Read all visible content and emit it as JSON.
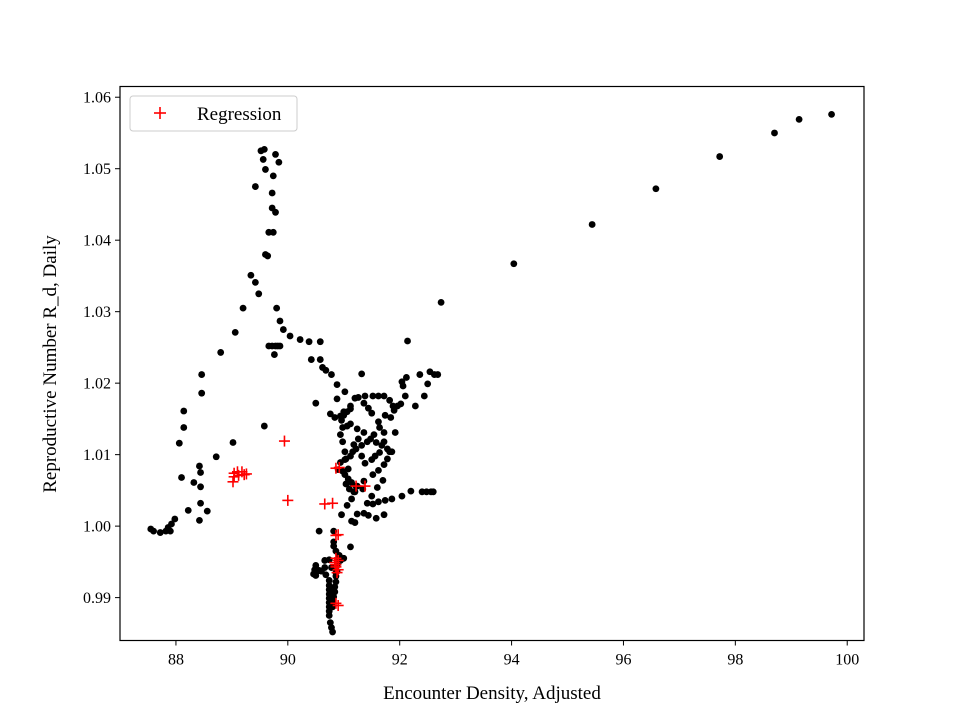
{
  "chart_data": {
    "type": "scatter",
    "title": "",
    "xlabel": "Encounter Density, Adjusted",
    "ylabel": "Reproductive Number R_d, Daily",
    "xlim": [
      87.0,
      100.3
    ],
    "ylim": [
      0.984,
      1.0615
    ],
    "xticks": [
      88,
      90,
      92,
      94,
      96,
      98,
      100
    ],
    "yticks": [
      0.99,
      1.0,
      1.01,
      1.02,
      1.03,
      1.04,
      1.05,
      1.06
    ],
    "xtick_labels": [
      "88",
      "90",
      "92",
      "94",
      "96",
      "98",
      "100"
    ],
    "ytick_labels": [
      "0.99",
      "1.00",
      "1.01",
      "1.02",
      "1.03",
      "1.04",
      "1.05",
      "1.06"
    ],
    "grid": false,
    "legend_placement": "top-left",
    "colors": {
      "observed": "#000000",
      "regression": "#ff0000"
    },
    "series": [
      {
        "marker": "dot",
        "color": "#000000",
        "points": [
          [
            87.55,
            0.9996
          ],
          [
            87.6,
            0.9993
          ],
          [
            87.72,
            0.9991
          ],
          [
            87.82,
            0.9993
          ],
          [
            87.86,
            0.9998
          ],
          [
            87.92,
            1.0003
          ],
          [
            87.9,
            0.9993
          ],
          [
            87.98,
            1.001
          ],
          [
            88.06,
            1.0116
          ],
          [
            88.1,
            1.0068
          ],
          [
            88.14,
            1.0138
          ],
          [
            88.14,
            1.0161
          ],
          [
            88.22,
            1.0022
          ],
          [
            88.32,
            1.0061
          ],
          [
            88.42,
            1.0084
          ],
          [
            88.44,
            1.0075
          ],
          [
            88.44,
            1.0055
          ],
          [
            88.44,
            1.0032
          ],
          [
            88.42,
            1.0008
          ],
          [
            88.56,
            1.0021
          ],
          [
            88.46,
            1.0186
          ],
          [
            88.46,
            1.0212
          ],
          [
            88.72,
            1.0097
          ],
          [
            88.8,
            1.0243
          ],
          [
            89.06,
            1.0271
          ],
          [
            89.02,
            1.0117
          ],
          [
            89.2,
            1.0305
          ],
          [
            89.34,
            1.0351
          ],
          [
            89.42,
            1.0341
          ],
          [
            89.48,
            1.0325
          ],
          [
            89.42,
            1.0475
          ],
          [
            89.52,
            1.0525
          ],
          [
            89.58,
            1.0527
          ],
          [
            89.56,
            1.0513
          ],
          [
            89.6,
            1.0499
          ],
          [
            89.6,
            1.038
          ],
          [
            89.64,
            1.0378
          ],
          [
            89.66,
            1.0411
          ],
          [
            89.74,
            1.0411
          ],
          [
            89.74,
            1.049
          ],
          [
            89.72,
            1.0466
          ],
          [
            89.72,
            1.0445
          ],
          [
            89.78,
            1.0439
          ],
          [
            89.78,
            1.052
          ],
          [
            89.84,
            1.0509
          ],
          [
            89.58,
            1.014
          ],
          [
            89.8,
            1.0305
          ],
          [
            89.86,
            1.0287
          ],
          [
            89.92,
            1.0275
          ],
          [
            89.66,
            1.0252
          ],
          [
            89.72,
            1.0252
          ],
          [
            89.78,
            1.0252
          ],
          [
            89.82,
            1.0252
          ],
          [
            89.86,
            1.0252
          ],
          [
            89.76,
            1.024
          ],
          [
            90.04,
            1.0266
          ],
          [
            90.22,
            1.0261
          ],
          [
            90.38,
            1.0258
          ],
          [
            90.58,
            1.0258
          ],
          [
            90.42,
            1.0233
          ],
          [
            90.58,
            1.0233
          ],
          [
            90.62,
            1.0222
          ],
          [
            90.68,
            1.0218
          ],
          [
            90.78,
            1.0212
          ],
          [
            90.88,
            1.0198
          ],
          [
            91.02,
            1.0188
          ],
          [
            90.88,
            1.0178
          ],
          [
            91.12,
            1.0164
          ],
          [
            90.94,
            1.0154
          ],
          [
            91.06,
            1.014
          ],
          [
            90.84,
            1.0152
          ],
          [
            90.76,
            1.0157
          ],
          [
            91.0,
            1.016
          ],
          [
            91.12,
            1.0143
          ],
          [
            91.24,
            1.0136
          ],
          [
            91.36,
            1.0131
          ],
          [
            91.48,
            1.0122
          ],
          [
            91.58,
            1.0117
          ],
          [
            91.68,
            1.0113
          ],
          [
            91.78,
            1.0108
          ],
          [
            91.86,
            1.0104
          ],
          [
            91.92,
            1.0131
          ],
          [
            91.84,
            1.0152
          ],
          [
            91.9,
            1.0162
          ],
          [
            91.96,
            1.0168
          ],
          [
            92.02,
            1.0171
          ],
          [
            92.1,
            1.0182
          ],
          [
            92.06,
            1.0196
          ],
          [
            92.04,
            1.0202
          ],
          [
            92.12,
            1.0208
          ],
          [
            92.14,
            1.0259
          ],
          [
            92.28,
            1.0168
          ],
          [
            92.36,
            1.0212
          ],
          [
            92.44,
            1.0182
          ],
          [
            92.5,
            1.0199
          ],
          [
            92.54,
            1.0216
          ],
          [
            92.62,
            1.0212
          ],
          [
            92.68,
            1.0212
          ],
          [
            92.74,
            1.0313
          ],
          [
            91.32,
            1.0213
          ],
          [
            91.38,
            1.0182
          ],
          [
            91.52,
            1.0182
          ],
          [
            91.62,
            1.0182
          ],
          [
            91.72,
            1.0182
          ],
          [
            91.82,
            1.0176
          ],
          [
            91.88,
            1.0168
          ],
          [
            91.74,
            1.0155
          ],
          [
            91.64,
            1.0138
          ],
          [
            91.54,
            1.0128
          ],
          [
            91.42,
            1.0118
          ],
          [
            91.32,
            1.0113
          ],
          [
            91.22,
            1.0108
          ],
          [
            91.12,
            1.0098
          ],
          [
            91.02,
            1.0093
          ],
          [
            90.94,
            1.0089
          ],
          [
            90.96,
            1.0078
          ],
          [
            91.02,
            1.0072
          ],
          [
            91.08,
            1.0066
          ],
          [
            91.04,
            1.0059
          ],
          [
            91.1,
            1.0052
          ],
          [
            91.18,
            1.0048
          ],
          [
            91.24,
            1.0056
          ],
          [
            91.36,
            1.0063
          ],
          [
            91.52,
            1.0072
          ],
          [
            91.62,
            1.0078
          ],
          [
            91.72,
            1.0086
          ],
          [
            91.78,
            1.0094
          ],
          [
            91.82,
            1.0104
          ],
          [
            91.7,
            1.0064
          ],
          [
            91.6,
            1.0054
          ],
          [
            91.5,
            1.0042
          ],
          [
            91.42,
            1.0032
          ],
          [
            91.52,
            1.0031
          ],
          [
            91.62,
            1.0034
          ],
          [
            91.74,
            1.0036
          ],
          [
            91.86,
            1.0038
          ],
          [
            92.04,
            1.0042
          ],
          [
            92.2,
            1.0049
          ],
          [
            92.4,
            1.0048
          ],
          [
            92.48,
            1.0048
          ],
          [
            92.56,
            1.0048
          ],
          [
            92.6,
            1.0048
          ],
          [
            91.72,
            1.0016
          ],
          [
            91.58,
            1.0011
          ],
          [
            91.44,
            1.0015
          ],
          [
            91.36,
            1.0018
          ],
          [
            91.24,
            1.0017
          ],
          [
            91.2,
            1.0005
          ],
          [
            91.14,
            1.0007
          ],
          [
            91.12,
            0.9971
          ],
          [
            91.0,
            0.9955
          ],
          [
            90.94,
            0.9952
          ],
          [
            90.86,
            0.9965
          ],
          [
            90.82,
            0.9972
          ],
          [
            90.74,
            0.9953
          ],
          [
            90.66,
            0.9942
          ],
          [
            90.6,
            0.9937
          ],
          [
            90.56,
            0.9938
          ],
          [
            90.5,
            0.9931
          ],
          [
            90.68,
            0.9932
          ],
          [
            90.74,
            0.9924
          ],
          [
            90.74,
            0.9917
          ],
          [
            90.74,
            0.9911
          ],
          [
            90.74,
            0.9905
          ],
          [
            90.74,
            0.9899
          ],
          [
            90.74,
            0.9893
          ],
          [
            90.74,
            0.9887
          ],
          [
            90.74,
            0.9881
          ],
          [
            90.74,
            0.9875
          ],
          [
            90.76,
            0.9865
          ],
          [
            90.78,
            0.9858
          ],
          [
            90.8,
            0.9852
          ],
          [
            90.8,
            0.9887
          ],
          [
            90.8,
            0.9894
          ],
          [
            90.82,
            0.9901
          ],
          [
            90.84,
            0.9908
          ],
          [
            90.84,
            0.9915
          ],
          [
            90.86,
            0.9922
          ],
          [
            90.86,
            0.993
          ],
          [
            90.88,
            0.9937
          ],
          [
            90.88,
            0.9945
          ],
          [
            90.9,
            0.9952
          ],
          [
            90.92,
            0.9959
          ],
          [
            90.82,
            0.9993
          ],
          [
            90.82,
            0.9978
          ],
          [
            90.96,
            1.0016
          ],
          [
            91.06,
            1.0029
          ],
          [
            91.14,
            1.0038
          ],
          [
            91.2,
            1.0048
          ],
          [
            91.14,
            1.0061
          ],
          [
            91.08,
            1.008
          ],
          [
            91.16,
            1.0104
          ],
          [
            91.18,
            1.0114
          ],
          [
            91.26,
            1.0122
          ],
          [
            91.32,
            1.0098
          ],
          [
            91.38,
            1.0088
          ],
          [
            91.5,
            1.0093
          ],
          [
            91.56,
            1.0098
          ],
          [
            91.64,
            1.0103
          ],
          [
            91.72,
            1.0118
          ],
          [
            91.72,
            1.0131
          ],
          [
            91.62,
            1.0146
          ],
          [
            91.5,
            1.0158
          ],
          [
            91.44,
            1.0165
          ],
          [
            91.36,
            1.0172
          ],
          [
            91.26,
            1.018
          ],
          [
            91.2,
            1.0179
          ],
          [
            91.12,
            1.0168
          ],
          [
            91.06,
            1.016
          ],
          [
            91.0,
            1.0155
          ],
          [
            90.96,
            1.0148
          ],
          [
            90.98,
            1.0138
          ],
          [
            90.94,
            1.0128
          ],
          [
            90.98,
            1.0118
          ],
          [
            91.02,
            1.0104
          ],
          [
            91.04,
            1.0094
          ],
          [
            90.98,
            1.0077
          ],
          [
            90.9,
            1.0079
          ],
          [
            91.22,
            1.0056
          ],
          [
            91.34,
            1.0052
          ],
          [
            90.56,
            0.9993
          ],
          [
            90.66,
            0.9952
          ],
          [
            90.78,
            0.9942
          ],
          [
            90.86,
            0.9935
          ],
          [
            90.5,
            1.0172
          ],
          [
            90.46,
            0.9933
          ],
          [
            90.48,
            0.9939
          ],
          [
            90.52,
            0.9937
          ],
          [
            90.5,
            0.9945
          ],
          [
            94.04,
            1.0367
          ],
          [
            95.44,
            1.0422
          ],
          [
            96.58,
            1.0472
          ],
          [
            97.72,
            1.0517
          ],
          [
            98.7,
            1.055
          ],
          [
            99.14,
            1.0569
          ],
          [
            99.72,
            1.0576
          ]
        ]
      },
      {
        "name": "Regression",
        "marker": "plus",
        "color": "#ff0000",
        "points": [
          [
            89.94,
            1.0119
          ],
          [
            89.02,
            1.0062
          ],
          [
            89.04,
            1.0074
          ],
          [
            89.1,
            1.0076
          ],
          [
            89.12,
            1.0071
          ],
          [
            89.18,
            1.0076
          ],
          [
            89.22,
            1.0072
          ],
          [
            89.26,
            1.0073
          ],
          [
            89.04,
            1.0069
          ],
          [
            90.0,
            1.0036
          ],
          [
            90.66,
            1.0031
          ],
          [
            90.8,
            1.0032
          ],
          [
            90.86,
            1.0081
          ],
          [
            90.92,
            1.0082
          ],
          [
            91.22,
            1.0056
          ],
          [
            91.38,
            1.0056
          ],
          [
            90.86,
            0.9987
          ],
          [
            90.9,
            0.9988
          ],
          [
            90.86,
            0.9955
          ],
          [
            90.9,
            0.9952
          ],
          [
            90.86,
            0.9943
          ],
          [
            90.9,
            0.9939
          ],
          [
            90.86,
            0.9946
          ],
          [
            90.88,
            0.9935
          ],
          [
            90.84,
            0.9949
          ],
          [
            90.86,
            0.9892
          ],
          [
            90.9,
            0.9889
          ]
        ]
      }
    ]
  }
}
